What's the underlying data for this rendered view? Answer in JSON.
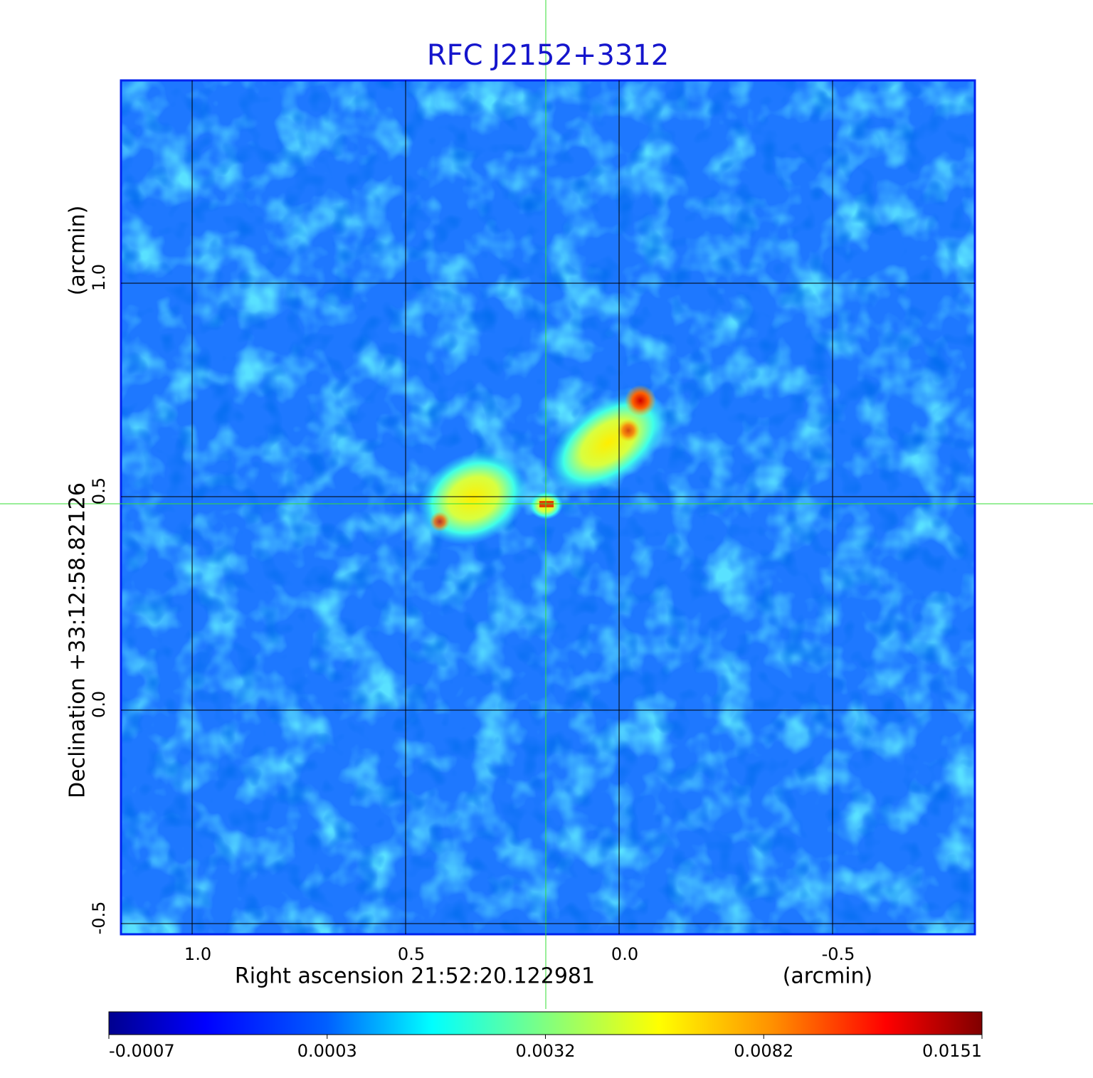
{
  "chart_data": {
    "type": "image",
    "title": "RFC J2152+3312",
    "x_label": "Right ascension  21:52:20.122981",
    "x_unit": "(arcmin)",
    "y_label": "Declination  +33:12:58.82126",
    "y_unit": "(arcmin)",
    "xlim": [
      1.1667,
      -0.8333
    ],
    "ylim": [
      -0.525,
      1.475
    ],
    "xticks": [
      {
        "value": 1,
        "label": "1.0"
      },
      0.5,
      {
        "value": 0,
        "label": "0.0"
      },
      -0.5
    ],
    "yticks": [
      {
        "value": 1,
        "label": "1.0"
      },
      0.5,
      {
        "value": 0,
        "label": "0.0"
      },
      -0.5
    ],
    "grid": true,
    "colorbar_ticks": [
      -0.0007,
      0.0003,
      0.0032,
      0.0082,
      0.0151
    ]
  }
}
